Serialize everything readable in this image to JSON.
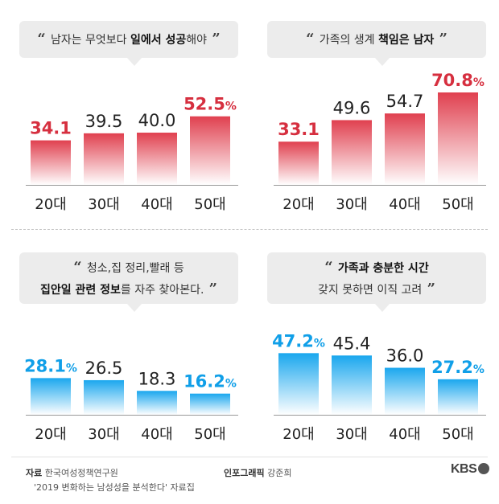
{
  "source": {
    "label": "자료",
    "org": "한국여성정책연구원",
    "report": "'2019 변화하는 남성성을 분석한다' 자료집"
  },
  "credit": {
    "label": "인포그래픽",
    "name": "강준희"
  },
  "logo": "KBS",
  "panels": [
    {
      "quote_open": "“",
      "quote_close": "”",
      "lines": [
        [
          {
            "t": "남자는 무엇보다 ",
            "b": false
          },
          {
            "t": "일에서 성공",
            "b": true
          },
          {
            "t": "해야",
            "b": false
          }
        ]
      ]
    },
    {
      "quote_open": "“",
      "quote_close": "”",
      "lines": [
        [
          {
            "t": "가족의 생계 ",
            "b": false
          },
          {
            "t": "책임은 남자",
            "b": true
          }
        ]
      ]
    },
    {
      "quote_open": "“",
      "quote_close": "”",
      "lines": [
        [
          {
            "t": "청소,집 정리,빨래 등",
            "b": false
          }
        ],
        [
          {
            "t": "집안일 관련 정보",
            "b": true
          },
          {
            "t": "를 자주 찾아본다.",
            "b": false
          }
        ]
      ]
    },
    {
      "quote_open": "“",
      "quote_close": "”",
      "lines": [
        [
          {
            "t": "가족과 충분한 시간",
            "b": true
          }
        ],
        [
          {
            "t": "갖지 못하면 이직 고려",
            "b": false
          }
        ]
      ]
    }
  ],
  "chart_data": [
    {
      "type": "bar",
      "categories": [
        "20대",
        "30대",
        "40대",
        "50대"
      ],
      "values": [
        34.1,
        39.5,
        40.0,
        52.5
      ],
      "value_labels": [
        "34.1",
        "39.5",
        "40.0",
        "52.5"
      ],
      "unit": "%",
      "highlight": [
        0,
        3
      ],
      "ylim": [
        0,
        80
      ],
      "color": "#e0404f",
      "highlight_color": "#d62f3f"
    },
    {
      "type": "bar",
      "categories": [
        "20대",
        "30대",
        "40대",
        "50대"
      ],
      "values": [
        33.1,
        49.6,
        54.7,
        70.8
      ],
      "value_labels": [
        "33.1",
        "49.6",
        "54.7",
        "70.8"
      ],
      "unit": "%",
      "highlight": [
        0,
        3
      ],
      "ylim": [
        0,
        80
      ],
      "color": "#e0404f",
      "highlight_color": "#d62f3f"
    },
    {
      "type": "bar",
      "categories": [
        "20대",
        "30대",
        "40대",
        "50대"
      ],
      "values": [
        28.1,
        26.5,
        18.3,
        16.2
      ],
      "value_labels": [
        "28.1",
        "26.5",
        "18.3",
        "16.2"
      ],
      "unit": "%",
      "highlight": [
        0,
        3
      ],
      "ylim": [
        0,
        80
      ],
      "color": "#1aa7ee",
      "highlight_color": "#109fe8"
    },
    {
      "type": "bar",
      "categories": [
        "20대",
        "30대",
        "40대",
        "50대"
      ],
      "values": [
        47.2,
        45.4,
        36.0,
        27.2
      ],
      "value_labels": [
        "47.2",
        "45.4",
        "36.0",
        "27.2"
      ],
      "unit": "%",
      "highlight": [
        0,
        3
      ],
      "ylim": [
        0,
        80
      ],
      "color": "#1aa7ee",
      "highlight_color": "#109fe8"
    }
  ]
}
